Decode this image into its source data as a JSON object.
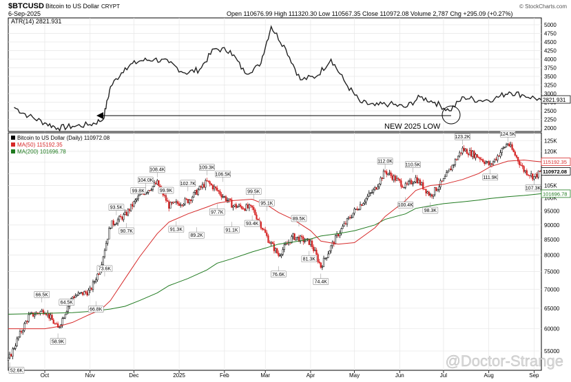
{
  "header": {
    "symbol": "$BTCUSD",
    "name": "Bitcoin to US Dollar",
    "exchange": "CRYPT",
    "date": "6-Sep-2025",
    "quote": "Open 110676.99  High 111320.30  Low 110567.35  Close 110972.08  Volume 2,787  Chg +295.09 (+0.27%)",
    "copyright": "© StockCharts.com"
  },
  "atr_panel": {
    "label": "ATR(14) 2821.931",
    "last_value": "2821.931",
    "annotation": "NEW 2025 LOW",
    "ticks": [
      "2000",
      "2250",
      "2500",
      "2750",
      "3000",
      "3250",
      "3500",
      "3750",
      "4000",
      "4250",
      "4500",
      "4750",
      "5000"
    ]
  },
  "price_panel": {
    "legend": [
      {
        "text": "Bitcoin to US Dollar (Daily) 110972.08",
        "color": "#000000"
      },
      {
        "text": "MA(50) 115192.35",
        "color": "#d62828"
      },
      {
        "text": "MA(200) 101696.78",
        "color": "#1f7a1f"
      }
    ],
    "ticks": [
      "55000",
      "60000",
      "65000",
      "70000",
      "75000",
      "80000",
      "85000",
      "90000",
      "95000",
      "100K",
      "105K",
      "110K",
      "115K",
      "120K",
      "125K"
    ],
    "value_tags": [
      {
        "text": "115192.35",
        "color": "#d62828"
      },
      {
        "text": "110972.08",
        "color": "#000000"
      },
      {
        "text": "101696.78",
        "color": "#1f7a1f"
      }
    ]
  },
  "x_axis": {
    "labels": [
      "Oct",
      "Nov",
      "Dec",
      "2025",
      "Feb",
      "Mar",
      "Apr",
      "May",
      "Jun",
      "Jul",
      "Aug",
      "Sep"
    ]
  },
  "watermark": "@Doctor-Strange",
  "chart_data": [
    {
      "type": "line",
      "title": "ATR(14) 2821.931",
      "xlabel": "",
      "ylabel": "",
      "ylim": [
        1900,
        5200
      ],
      "x": [
        "2024-09-10",
        "2024-09-20",
        "2024-10-01",
        "2024-10-10",
        "2024-10-20",
        "2024-11-01",
        "2024-11-10",
        "2024-11-15",
        "2024-11-25",
        "2024-12-05",
        "2024-12-15",
        "2024-12-25",
        "2025-01-05",
        "2025-01-15",
        "2025-01-25",
        "2025-02-05",
        "2025-02-15",
        "2025-02-25",
        "2025-03-05",
        "2025-03-15",
        "2025-03-25",
        "2025-04-05",
        "2025-04-15",
        "2025-04-25",
        "2025-05-05",
        "2025-05-15",
        "2025-05-25",
        "2025-06-05",
        "2025-06-15",
        "2025-06-25",
        "2025-07-05",
        "2025-07-15",
        "2025-07-25",
        "2025-08-05",
        "2025-08-15",
        "2025-08-25",
        "2025-09-06"
      ],
      "series": [
        {
          "values": [
            2600,
            2350,
            2150,
            2000,
            2050,
            2100,
            2250,
            3200,
            3750,
            3950,
            4000,
            3900,
            3600,
            3700,
            4300,
            4250,
            3600,
            3800,
            4950,
            4300,
            3400,
            3500,
            4000,
            3300,
            2750,
            2650,
            2700,
            2600,
            2900,
            2750,
            2500,
            2900,
            2800,
            2850,
            3050,
            2950,
            2821.931
          ]
        }
      ],
      "annotations": [
        "NEW 2025 LOW"
      ],
      "grid": true
    },
    {
      "type": "line",
      "title": "Bitcoin to US Dollar (Daily) 110972.08",
      "xlabel": "",
      "ylabel": "",
      "ylim": [
        51000,
        129000
      ],
      "y_scale": "log",
      "x": [
        "2024-09-06",
        "2024-09-20",
        "2024-10-01",
        "2024-10-10",
        "2024-10-20",
        "2024-11-01",
        "2024-11-08",
        "2024-11-15",
        "2024-11-25",
        "2024-12-05",
        "2024-12-17",
        "2024-12-25",
        "2025-01-07",
        "2025-01-20",
        "2025-01-27",
        "2025-02-07",
        "2025-02-20",
        "2025-03-03",
        "2025-03-10",
        "2025-03-20",
        "2025-04-01",
        "2025-04-08",
        "2025-04-20",
        "2025-05-01",
        "2025-05-15",
        "2025-05-22",
        "2025-06-05",
        "2025-06-12",
        "2025-06-22",
        "2025-07-01",
        "2025-07-14",
        "2025-07-25",
        "2025-08-02",
        "2025-08-14",
        "2025-08-25",
        "2025-09-01",
        "2025-09-06"
      ],
      "series": [
        {
          "name": "Bitcoin to US Dollar (Daily)",
          "values": [
            53000,
            63000,
            64500,
            60000,
            68000,
            69500,
            76000,
            90000,
            93500,
            101000,
            106000,
            97000,
            99000,
            106500,
            103000,
            97000,
            96000,
            85000,
            80000,
            86000,
            84000,
            76500,
            87000,
            95000,
            103500,
            111000,
            104500,
            108000,
            101000,
            107000,
            121000,
            117500,
            113500,
            124000,
            111500,
            108500,
            110972.08
          ]
        },
        {
          "name": "MA(50)",
          "values": [
            60000,
            60000,
            60000,
            60500,
            61500,
            63500,
            64500,
            67000,
            73000,
            79500,
            87000,
            91000,
            94000,
            96500,
            98000,
            99000,
            99500,
            97000,
            94500,
            92000,
            88000,
            84500,
            83500,
            84000,
            89000,
            93000,
            99000,
            103000,
            105000,
            105500,
            107500,
            110000,
            113000,
            115500,
            116000,
            115500,
            115192.35
          ]
        },
        {
          "name": "MA(200)",
          "values": [
            63500,
            63600,
            63700,
            63800,
            63900,
            64200,
            64500,
            64800,
            65500,
            67000,
            69000,
            71000,
            73000,
            75500,
            77500,
            79000,
            81000,
            82500,
            83500,
            84200,
            85200,
            86200,
            87000,
            88000,
            90000,
            92000,
            94000,
            96000,
            97000,
            97800,
            98500,
            99200,
            99800,
            100500,
            101000,
            101400,
            101696.78
          ]
        }
      ],
      "annotations": [
        "52.6K",
        "58.9K",
        "66.5K",
        "64.5K",
        "66.8K",
        "73.6K",
        "93.5K",
        "90.7K",
        "99.8K",
        "104.0K",
        "108.4K",
        "99.9K",
        "91.3K",
        "102.7K",
        "89.2K",
        "109.3K",
        "106.5K",
        "97.7K",
        "91.1K",
        "99.5K",
        "93.4K",
        "95.1K",
        "76.6K",
        "89.5K",
        "81.3K",
        "74.4K",
        "112.0K",
        "100.4K",
        "110.5K",
        "98.3K",
        "123.2K",
        "111.9K",
        "124.5K",
        "107.3K"
      ],
      "grid": true
    }
  ]
}
